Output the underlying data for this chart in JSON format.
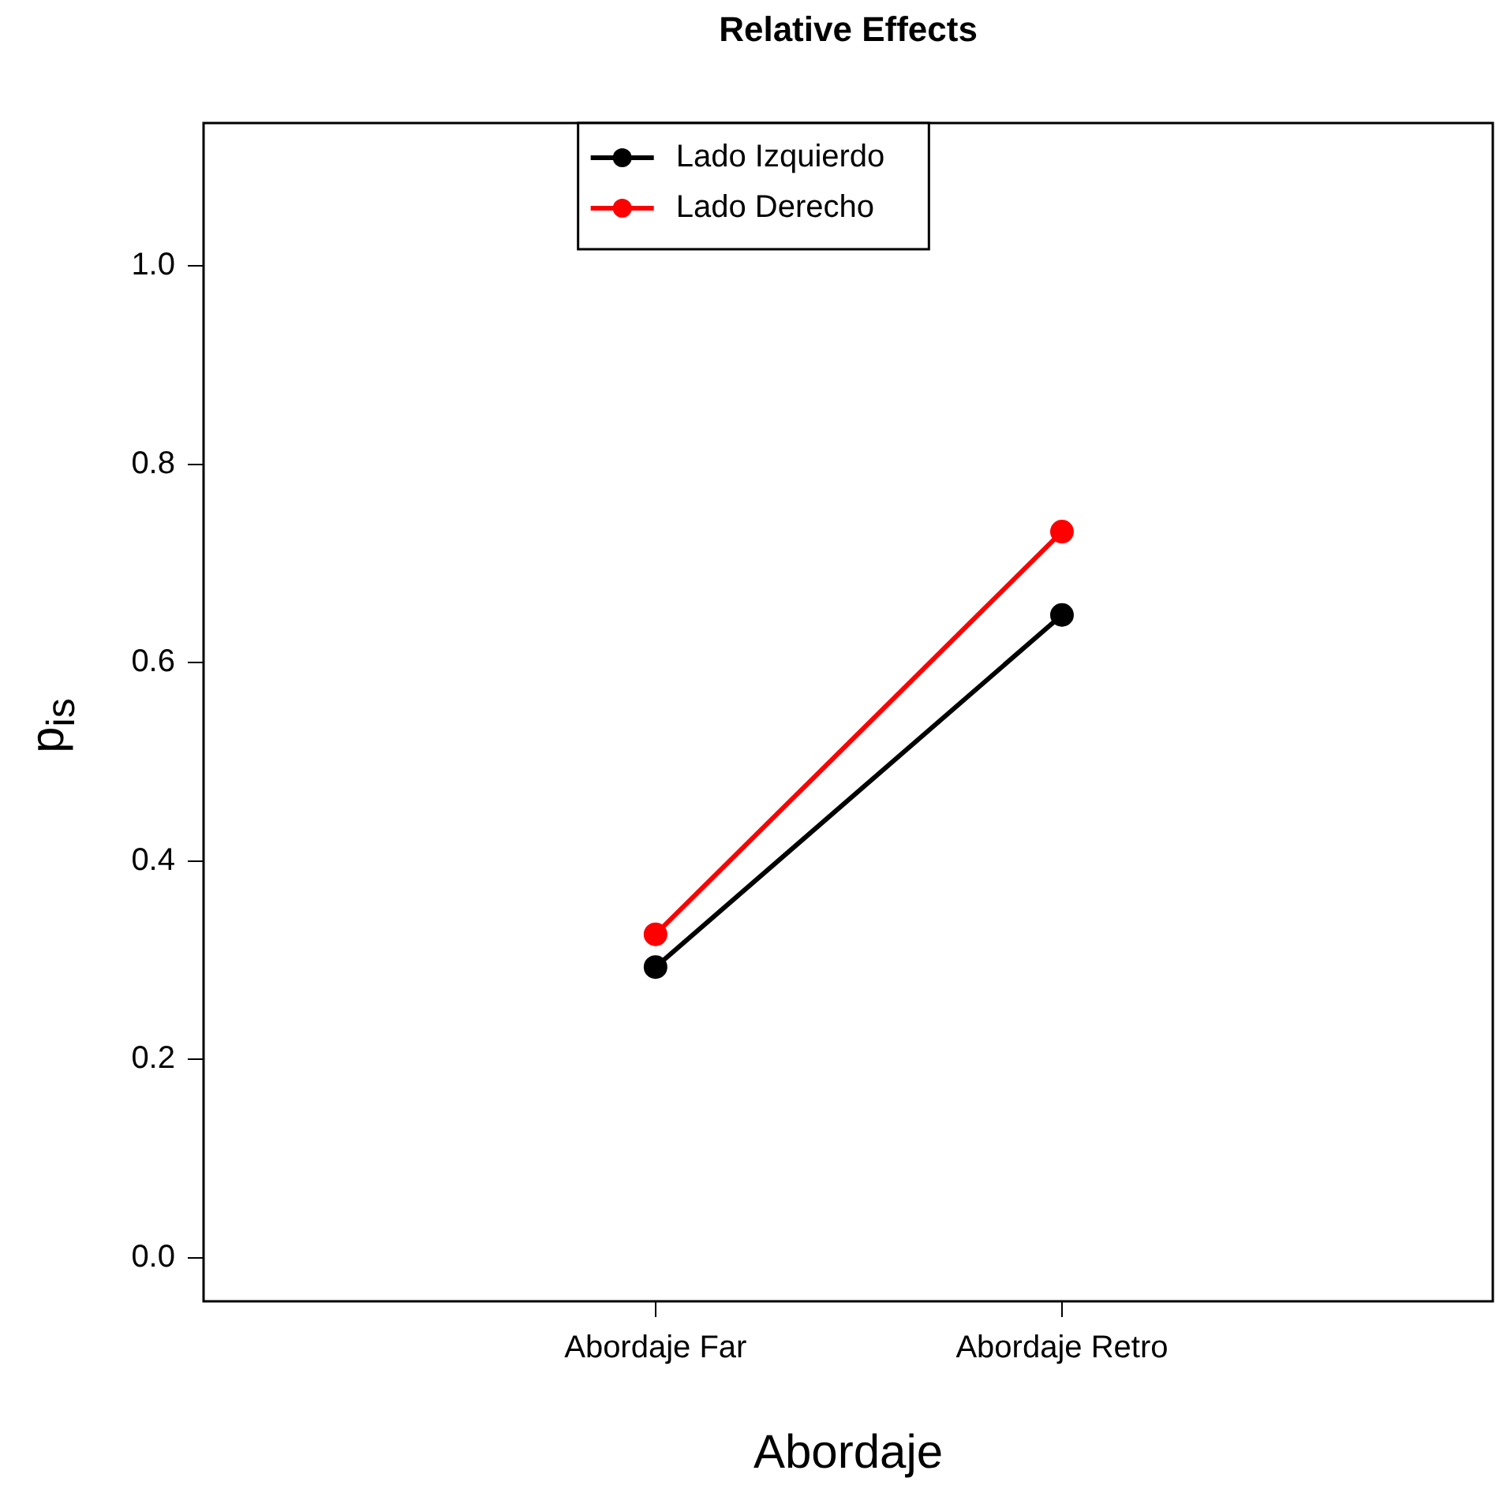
{
  "chart_data": {
    "type": "line",
    "title": "Relative Effects",
    "xlabel": "Abordaje",
    "ylabel": "p$_{is}$",
    "categories": [
      "Abordaje Far",
      "Abordaje Retro"
    ],
    "series": [
      {
        "name": "Lado Izquierdo",
        "color": "#000000",
        "values": [
          0.293,
          0.648
        ]
      },
      {
        "name": "Lado Derecho",
        "color": "#ff0000",
        "values": [
          0.326,
          0.732
        ]
      }
    ],
    "ylim": [
      -0.044,
      1.144
    ],
    "yticks": [
      {
        "value": 0,
        "label": "0.0"
      },
      {
        "value": 0.2,
        "label": "0.2"
      },
      {
        "value": 0.4,
        "label": "0.4"
      },
      {
        "value": 0.6,
        "label": "0.6"
      },
      {
        "value": 0.8,
        "label": "0.8"
      },
      {
        "value": 1,
        "label": "1.0"
      }
    ],
    "grid": false,
    "legend": "top",
    "marker": "circle",
    "line_style": "solid"
  }
}
